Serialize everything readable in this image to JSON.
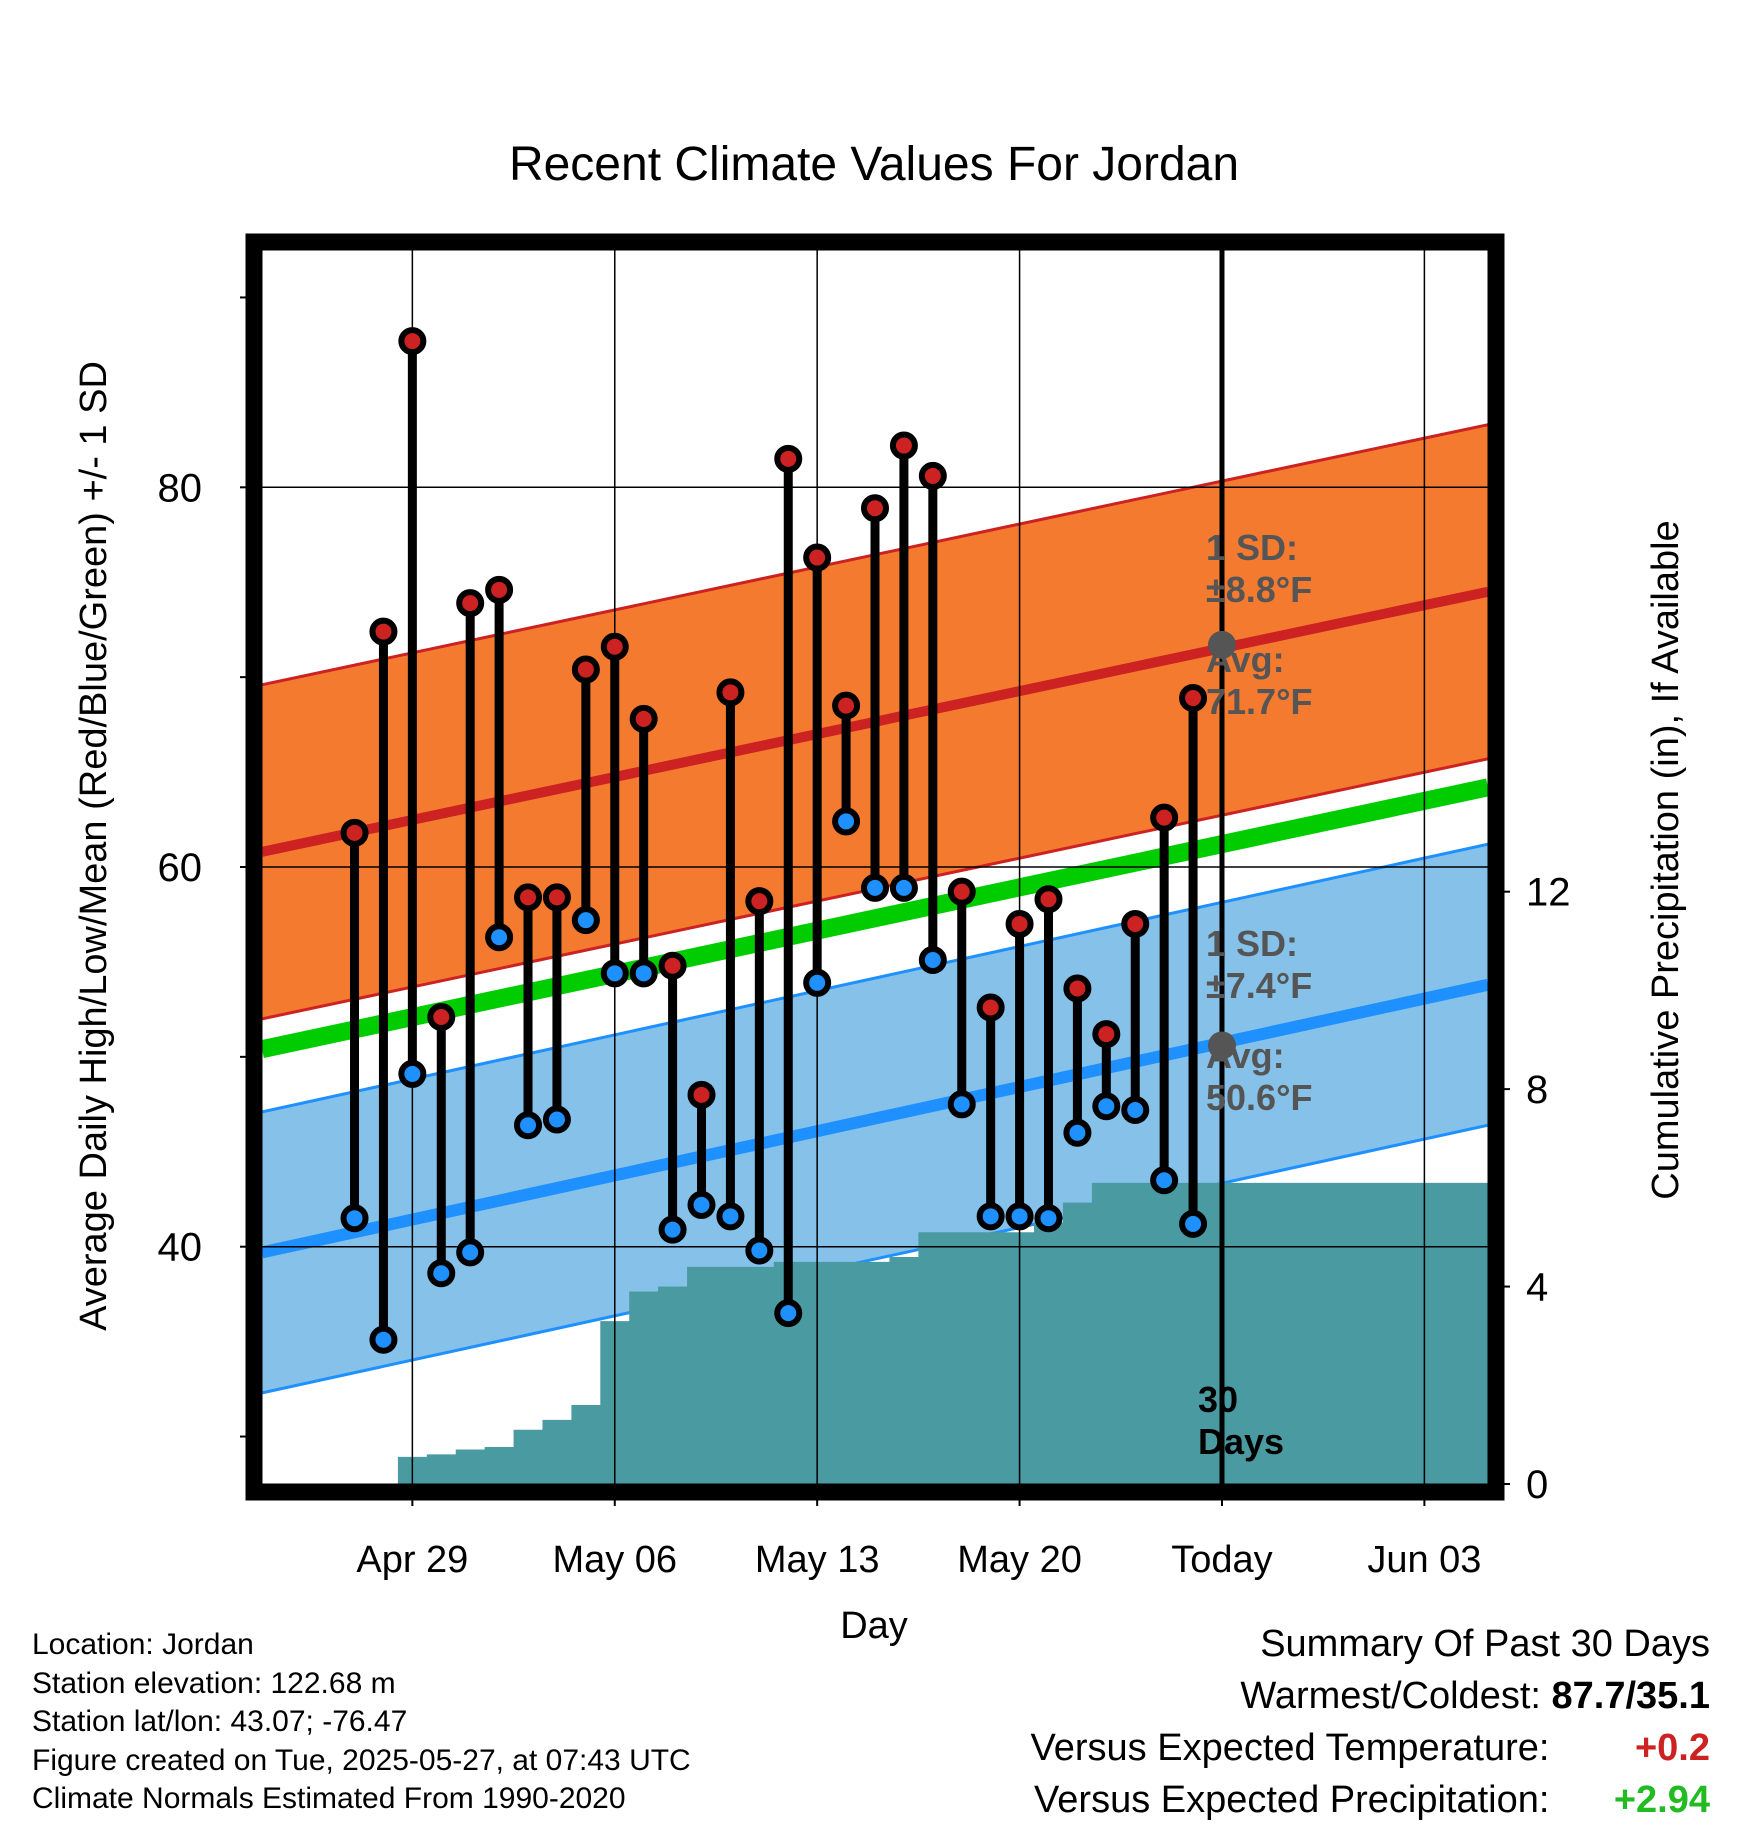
{
  "title": "Recent Climate Values For Jordan",
  "axes": {
    "ylabel_left": "Average Daily High/Low/Mean (Red/Blue/Green) +/- 1 SD",
    "ylabel_right": "Cumulative Precipitation (in), If Available",
    "xlabel": "Day",
    "x_ticks": [
      "Apr 29",
      "May 06",
      "May 13",
      "May 20",
      "Today",
      "Jun 03"
    ],
    "y_ticks_left": [
      "40",
      "60",
      "80"
    ],
    "y_ticks_right": [
      "0",
      "4",
      "8",
      "12"
    ]
  },
  "annotations": {
    "high_sd_line1": "1 SD:",
    "high_sd_line2": "±8.8°F",
    "high_avg_line1": "Avg:",
    "high_avg_line2": "71.7°F",
    "low_sd_line1": "1 SD:",
    "low_sd_line2": "±7.4°F",
    "low_avg_line1": "Avg:",
    "low_avg_line2": "50.6°F",
    "days_line1": "30",
    "days_line2": "Days"
  },
  "colors": {
    "high": "#cc2222",
    "high_band": "#f47a30",
    "low": "#1e90ff",
    "low_band": "#85c1e8",
    "mean": "#00cc00",
    "precip": "#4a9aa2",
    "avg_marker": "#555555"
  },
  "chart_data": {
    "type": "line",
    "x_range_days": [
      -33.2,
      9.2
    ],
    "y_range_left": [
      27.5,
      92.5
    ],
    "y_range_right_in": [
      0,
      25
    ],
    "days_before_today": [
      -30,
      -29,
      -28,
      -27,
      -26,
      -25,
      -24,
      -23,
      -22,
      -21,
      -20,
      -19,
      -18,
      -17,
      -16,
      -15,
      -14,
      -13,
      -12,
      -11,
      -10,
      -9,
      -8,
      -7,
      -6,
      -5,
      -4,
      -3,
      -2,
      -1
    ],
    "series": [
      {
        "name": "High",
        "values": [
          61.8,
          72.4,
          87.7,
          52.1,
          73.9,
          74.6,
          58.4,
          58.4,
          70.4,
          71.6,
          67.8,
          54.8,
          48.0,
          69.2,
          58.2,
          81.5,
          76.3,
          68.5,
          78.9,
          82.2,
          80.6,
          58.7,
          52.6,
          57.0,
          58.3,
          53.6,
          51.2,
          57.0,
          62.6,
          68.9
        ]
      },
      {
        "name": "Low",
        "values": [
          41.5,
          35.1,
          49.1,
          38.6,
          39.7,
          56.3,
          46.4,
          46.7,
          57.2,
          54.4,
          54.4,
          40.9,
          42.2,
          41.6,
          39.8,
          36.5,
          53.9,
          62.4,
          58.9,
          58.9,
          55.1,
          47.5,
          41.6,
          41.6,
          41.5,
          46.0,
          47.4,
          47.2,
          43.5,
          41.2
        ]
      },
      {
        "name": "Precip",
        "values": [
          0.0,
          0.0,
          0.55,
          0.6,
          0.7,
          0.75,
          1.1,
          1.3,
          1.6,
          3.3,
          3.9,
          4.0,
          4.4,
          4.4,
          4.4,
          4.5,
          4.5,
          4.5,
          4.5,
          4.6,
          5.1,
          5.1,
          5.1,
          5.1,
          5.3,
          5.7,
          6.1,
          6.1,
          6.1,
          6.1
        ]
      }
    ],
    "normals": {
      "high_avg_start": 60.8,
      "high_avg_end": 74.5,
      "high_sd": 8.8,
      "low_avg_start": 39.7,
      "low_avg_end": 53.8,
      "low_sd": 7.4,
      "mean_start": 50.4,
      "mean_end": 64.2,
      "today_high_avg": 71.7,
      "today_low_avg": 50.6
    },
    "precip_flat_after_in": 6.1
  },
  "footer": {
    "location": "Location: Jordan",
    "elevation": "Station elevation: 122.68 m",
    "latlon": "Station lat/lon: 43.07; -76.47",
    "created": "Figure created on Tue, 2025-05-27, at 07:43 UTC",
    "normals": "Climate Normals Estimated From 1990-2020"
  },
  "summary": {
    "heading": "Summary Of Past 30 Days",
    "warmest_label": "Warmest/Coldest:",
    "warmest_value": "87.7/35.1",
    "temp_label": "Versus Expected Temperature:",
    "temp_value": "+0.2",
    "precip_label": "Versus Expected Precipitation:",
    "precip_value": "+2.94"
  }
}
